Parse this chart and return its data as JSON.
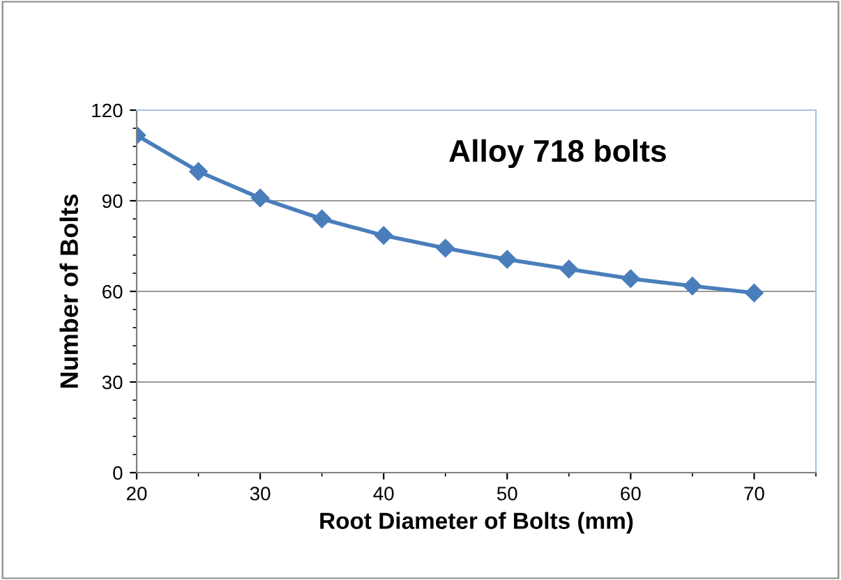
{
  "chart_data": {
    "type": "line",
    "title": "Alloy 718 bolts",
    "xlabel": "Root Diameter of Bolts (mm)",
    "ylabel": "Number of Bolts",
    "x": [
      20,
      25,
      30,
      35,
      40,
      45,
      50,
      55,
      60,
      65,
      70
    ],
    "series": [
      {
        "color": "#4a7ebb",
        "values": [
          111.7,
          99.7,
          90.9,
          84,
          78.5,
          74.3,
          70.6,
          67.4,
          64.2,
          61.8,
          59.5
        ]
      }
    ],
    "xlim": [
      20,
      75
    ],
    "ylim": [
      0,
      120
    ],
    "xticks": [
      20,
      30,
      40,
      50,
      60,
      70
    ],
    "yticks": [
      0,
      30,
      60,
      90,
      120
    ],
    "grid": "y",
    "marker": "diamond",
    "line_style": "solid"
  }
}
